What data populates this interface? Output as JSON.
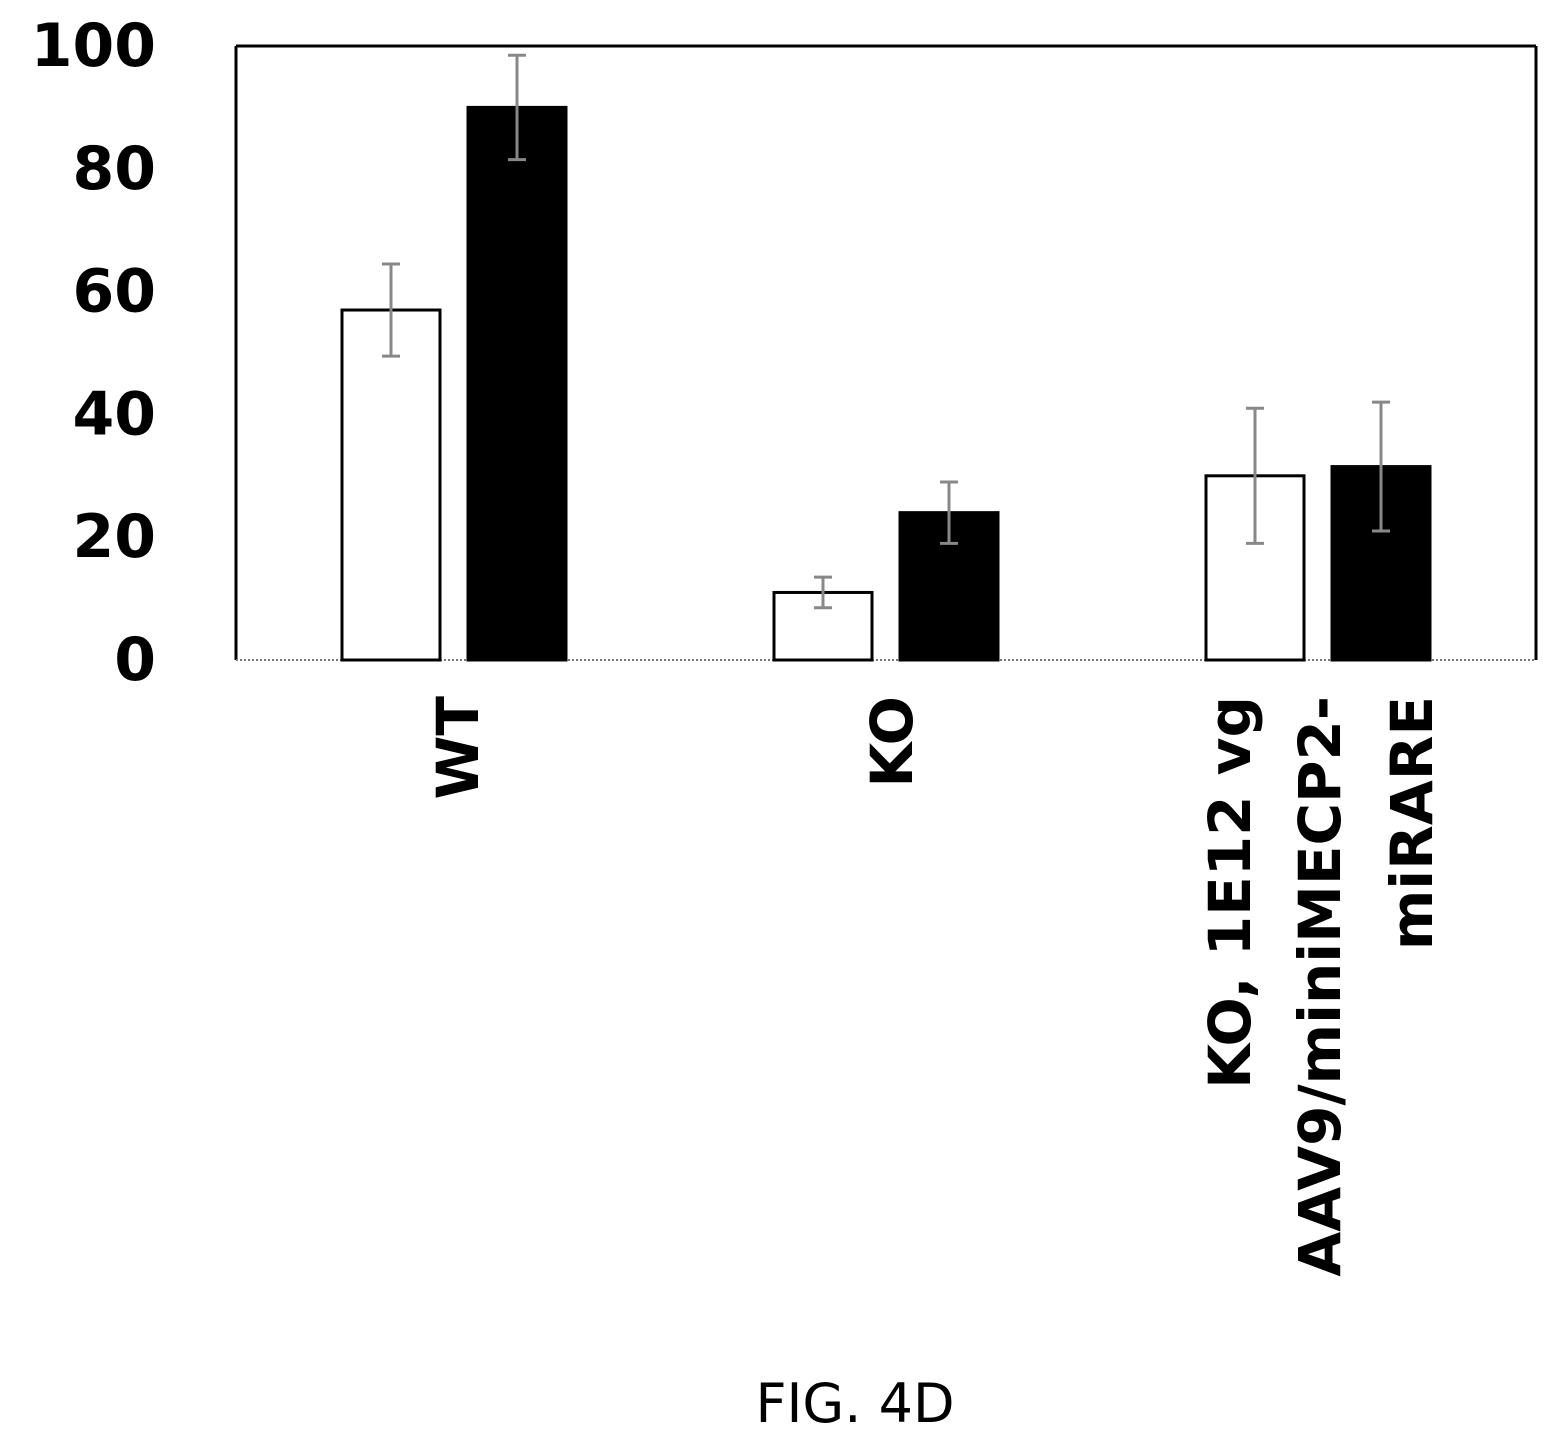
{
  "chart_data": {
    "type": "bar",
    "categories": [
      [
        "WT"
      ],
      [
        "KO"
      ],
      [
        "KO, 1E12 vg",
        "AAV9/miniMECP2-",
        "miRARE"
      ]
    ],
    "series": [
      {
        "fill": "#ffffff",
        "values": [
          57,
          11,
          30
        ],
        "errors": [
          7.5,
          2.5,
          11
        ]
      },
      {
        "fill": "#000000",
        "values": [
          90,
          24,
          31.5
        ],
        "errors": [
          8.5,
          5,
          10.5
        ]
      }
    ],
    "ylim": [
      0,
      100
    ],
    "yticks": [
      0,
      20,
      40,
      60,
      80,
      100
    ],
    "legend": "none",
    "grid": false
  },
  "caption": "FIG. 4D"
}
